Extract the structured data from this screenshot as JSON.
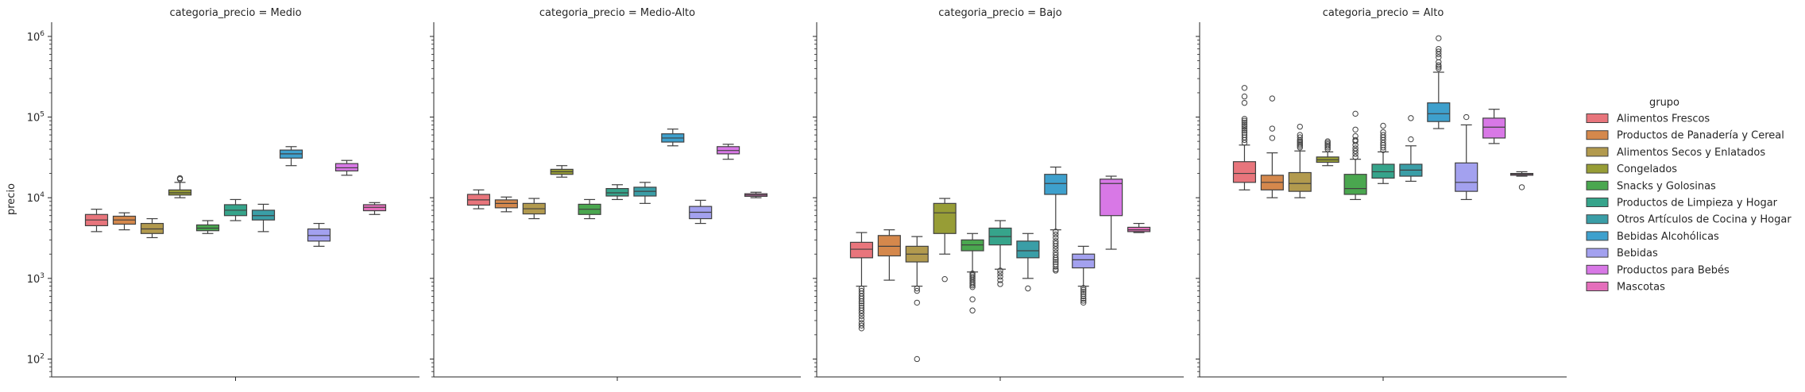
{
  "chart_data": {
    "type": "box",
    "ylabel": "precio",
    "yscale": "log",
    "ylim": [
      60,
      1500000
    ],
    "yticks": [
      {
        "value": 100,
        "base": "10",
        "exp": "2"
      },
      {
        "value": 1000,
        "base": "10",
        "exp": "3"
      },
      {
        "value": 10000,
        "base": "10",
        "exp": "4"
      },
      {
        "value": 100000,
        "base": "10",
        "exp": "5"
      },
      {
        "value": 1000000,
        "base": "10",
        "exp": "6"
      }
    ],
    "legend": {
      "title": "grupo",
      "placement": "right",
      "entries": [
        {
          "name": "Alimentos Frescos",
          "color": "#e8757c"
        },
        {
          "name": "Productos de Panadería y Cereal",
          "color": "#d5884c"
        },
        {
          "name": "Alimentos Secos y Enlatados",
          "color": "#b29a4e"
        },
        {
          "name": "Congelados",
          "color": "#979d36"
        },
        {
          "name": "Snacks y Golosinas",
          "color": "#4aa74f"
        },
        {
          "name": "Productos de Limpieza y Hogar",
          "color": "#36a48b"
        },
        {
          "name": "Otros Artículos de Cocina y Hogar",
          "color": "#3a9ea7"
        },
        {
          "name": "Bebidas Alcohólicas",
          "color": "#3ea0cd"
        },
        {
          "name": "Bebidas",
          "color": "#a3a1ef"
        },
        {
          "name": "Productos para Bebés",
          "color": "#d878e6"
        },
        {
          "name": "Mascotas",
          "color": "#e46fbb"
        }
      ]
    },
    "panels": [
      {
        "title": "categoria_precio = Medio",
        "boxes": [
          {
            "group": 0,
            "min": 3800,
            "q1": 4500,
            "median": 5300,
            "q3": 6200,
            "max": 7200,
            "outliers": []
          },
          {
            "group": 1,
            "min": 4000,
            "q1": 4700,
            "median": 5300,
            "q3": 5900,
            "max": 6500,
            "outliers": []
          },
          {
            "group": 2,
            "min": 3200,
            "q1": 3600,
            "median": 4100,
            "q3": 4800,
            "max": 5500,
            "outliers": []
          },
          {
            "group": 3,
            "min": 10000,
            "q1": 10800,
            "median": 11500,
            "q3": 12500,
            "max": 15500,
            "outliers": [
              17000,
              17500
            ]
          },
          {
            "group": 4,
            "min": 3600,
            "q1": 3900,
            "median": 4200,
            "q3": 4600,
            "max": 5200,
            "outliers": []
          },
          {
            "group": 5,
            "min": 5200,
            "q1": 6000,
            "median": 7000,
            "q3": 8200,
            "max": 9500,
            "outliers": []
          },
          {
            "group": 6,
            "min": 3800,
            "q1": 5300,
            "median": 6000,
            "q3": 7000,
            "max": 8300,
            "outliers": []
          },
          {
            "group": 7,
            "min": 25000,
            "q1": 31000,
            "median": 35000,
            "q3": 39000,
            "max": 43000,
            "outliers": []
          },
          {
            "group": 8,
            "min": 2500,
            "q1": 2900,
            "median": 3400,
            "q3": 4100,
            "max": 4800,
            "outliers": []
          },
          {
            "group": 9,
            "min": 19000,
            "q1": 21500,
            "median": 23500,
            "q3": 26500,
            "max": 29000,
            "outliers": []
          },
          {
            "group": 10,
            "min": 6200,
            "q1": 6900,
            "median": 7600,
            "q3": 8200,
            "max": 8700,
            "outliers": []
          }
        ]
      },
      {
        "title": "categoria_precio = Medio-Alto",
        "boxes": [
          {
            "group": 0,
            "min": 7300,
            "q1": 8100,
            "median": 9400,
            "q3": 11000,
            "max": 12500,
            "outliers": []
          },
          {
            "group": 1,
            "min": 6700,
            "q1": 7500,
            "median": 8500,
            "q3": 9400,
            "max": 10200,
            "outliers": []
          },
          {
            "group": 2,
            "min": 5500,
            "q1": 6300,
            "median": 7300,
            "q3": 8500,
            "max": 9800,
            "outliers": []
          },
          {
            "group": 3,
            "min": 18000,
            "q1": 19500,
            "median": 21000,
            "q3": 22500,
            "max": 25000,
            "outliers": []
          },
          {
            "group": 4,
            "min": 5500,
            "q1": 6200,
            "median": 7200,
            "q3": 8300,
            "max": 9500,
            "outliers": []
          },
          {
            "group": 5,
            "min": 9500,
            "q1": 10500,
            "median": 11500,
            "q3": 13000,
            "max": 14500,
            "outliers": []
          },
          {
            "group": 6,
            "min": 8500,
            "q1": 10500,
            "median": 12000,
            "q3": 13500,
            "max": 15500,
            "outliers": []
          },
          {
            "group": 7,
            "min": 44000,
            "q1": 49000,
            "median": 55000,
            "q3": 62000,
            "max": 71000,
            "outliers": []
          },
          {
            "group": 8,
            "min": 4800,
            "q1": 5500,
            "median": 6600,
            "q3": 7800,
            "max": 9300,
            "outliers": []
          },
          {
            "group": 9,
            "min": 30000,
            "q1": 35000,
            "median": 38500,
            "q3": 43000,
            "max": 46000,
            "outliers": []
          },
          {
            "group": 10,
            "min": 10000,
            "q1": 10400,
            "median": 10800,
            "q3": 11200,
            "max": 11700,
            "outliers": []
          }
        ]
      },
      {
        "title": "categoria_precio = Bajo",
        "boxes": [
          {
            "group": 0,
            "min": 800,
            "q1": 1800,
            "median": 2300,
            "q3": 2800,
            "max": 3700,
            "outliers": [
              750,
              700,
              650,
              600,
              560,
              520,
              490,
              460,
              430,
              400,
              370,
              340,
              310,
              280,
              260,
              240
            ]
          },
          {
            "group": 1,
            "min": 950,
            "q1": 1900,
            "median": 2500,
            "q3": 3400,
            "max": 4000,
            "outliers": []
          },
          {
            "group": 2,
            "min": 800,
            "q1": 1600,
            "median": 2000,
            "q3": 2500,
            "max": 3300,
            "outliers": [
              750,
              700,
              500,
              100
            ]
          },
          {
            "group": 3,
            "min": 2000,
            "q1": 3600,
            "median": 6500,
            "q3": 8500,
            "max": 9800,
            "outliers": [
              980
            ]
          },
          {
            "group": 4,
            "min": 1200,
            "q1": 2200,
            "median": 2600,
            "q3": 3000,
            "max": 3600,
            "outliers": [
              1150,
              1100,
              1050,
              1000,
              950,
              900,
              860,
              820,
              780,
              550,
              400
            ]
          },
          {
            "group": 5,
            "min": 1300,
            "q1": 2600,
            "median": 3300,
            "q3": 4200,
            "max": 5200,
            "outliers": [
              1250,
              1150,
              1050,
              950,
              850
            ]
          },
          {
            "group": 6,
            "min": 1000,
            "q1": 1800,
            "median": 2200,
            "q3": 2900,
            "max": 3600,
            "outliers": [
              750
            ]
          },
          {
            "group": 7,
            "min": 4000,
            "q1": 11000,
            "median": 15000,
            "q3": 19500,
            "max": 24000,
            "outliers": [
              3800,
              3500,
              3200,
              2900,
              2700,
              2500,
              2300,
              2100,
              1950,
              1800,
              1700,
              1600,
              1500,
              1400,
              1300,
              1250
            ]
          },
          {
            "group": 8,
            "min": 800,
            "q1": 1350,
            "median": 1700,
            "q3": 2000,
            "max": 2500,
            "outliers": [
              760,
              720,
              680,
              640,
              600,
              560,
              530,
              500
            ]
          },
          {
            "group": 9,
            "min": 2300,
            "q1": 6000,
            "median": 15000,
            "q3": 17000,
            "max": 18500,
            "outliers": []
          },
          {
            "group": 10,
            "min": 3700,
            "q1": 3800,
            "median": 4000,
            "q3": 4300,
            "max": 4800,
            "outliers": []
          }
        ]
      },
      {
        "title": "categoria_precio = Alto",
        "boxes": [
          {
            "group": 0,
            "min": 12500,
            "q1": 15500,
            "median": 20000,
            "q3": 28000,
            "max": 45000,
            "outliers": [
              48000,
              52000,
              56000,
              60000,
              64000,
              68000,
              72000,
              76000,
              80000,
              85000,
              90000,
              95000,
              150000,
              180000,
              230000
            ]
          },
          {
            "group": 1,
            "min": 10000,
            "q1": 12500,
            "median": 15500,
            "q3": 19000,
            "max": 36000,
            "outliers": [
              55000,
              72000,
              170000
            ]
          },
          {
            "group": 2,
            "min": 10000,
            "q1": 12000,
            "median": 15000,
            "q3": 20500,
            "max": 38000,
            "outliers": [
              42000,
              44000,
              46000,
              48000,
              50000,
              52000,
              56000,
              60000,
              76000
            ]
          },
          {
            "group": 3,
            "min": 25000,
            "q1": 27500,
            "median": 29500,
            "q3": 32000,
            "max": 37000,
            "outliers": [
              40000,
              42000,
              44000,
              46000,
              48000,
              50000
            ]
          },
          {
            "group": 4,
            "min": 9500,
            "q1": 11000,
            "median": 13000,
            "q3": 19500,
            "max": 30000,
            "outliers": [
              32000,
              35000,
              38000,
              41000,
              45000,
              50000,
              52000,
              58000,
              70000,
              110000
            ]
          },
          {
            "group": 5,
            "min": 15000,
            "q1": 17500,
            "median": 21000,
            "q3": 26000,
            "max": 37000,
            "outliers": [
              39000,
              42000,
              45000,
              48000,
              52000,
              56000,
              60000,
              65000,
              78000
            ]
          },
          {
            "group": 6,
            "min": 16000,
            "q1": 18500,
            "median": 22000,
            "q3": 26000,
            "max": 44000,
            "outliers": [
              53000,
              97000
            ]
          },
          {
            "group": 7,
            "min": 72000,
            "q1": 88000,
            "median": 110000,
            "q3": 150000,
            "max": 360000,
            "outliers": [
              400000,
              420000,
              440000,
              480000,
              550000,
              600000,
              650000,
              700000,
              950000
            ]
          },
          {
            "group": 8,
            "min": 9500,
            "q1": 12000,
            "median": 15500,
            "q3": 27000,
            "max": 80000,
            "outliers": [
              100000
            ]
          },
          {
            "group": 9,
            "min": 47000,
            "q1": 55000,
            "median": 75000,
            "q3": 97000,
            "max": 125000,
            "outliers": []
          },
          {
            "group": 10,
            "min": 18500,
            "q1": 19000,
            "median": 19500,
            "q3": 20000,
            "max": 21000,
            "outliers": [
              13500
            ]
          }
        ]
      }
    ]
  }
}
